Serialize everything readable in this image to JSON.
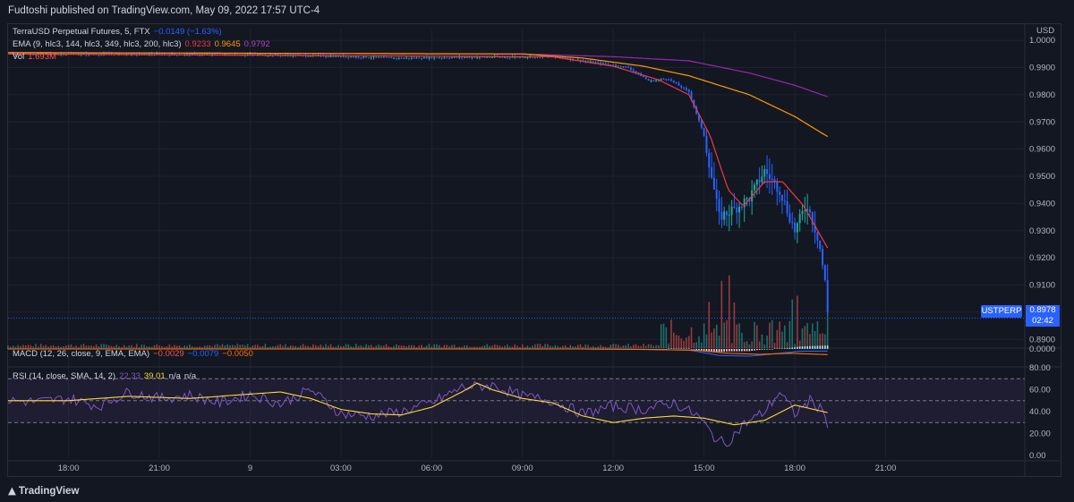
{
  "publisher": "Fudtoshi published on TradingView.com, May 09, 2022 17:57 UTC-4",
  "brand": "TradingView",
  "legend": {
    "main": {
      "title": "TerraUSD Perpetual Futures, 5, FTX",
      "change": "−0.0149 (−1.63%)"
    },
    "ema": {
      "label": "EMA (9, hlc3, 144, hlc3, 349, hlc3, 200, hlc3)",
      "v1": "0.9233",
      "v2": "0.9645",
      "v3": "0.9792"
    },
    "vol": {
      "label": "Vol",
      "value": "1.693M"
    },
    "macd": {
      "label": "MACD (12, 26, close, 9, EMA, EMA)",
      "v1": "−0.0029",
      "v2": "−0.0079",
      "v3": "−0.0050"
    },
    "rsi": {
      "label": "RSI (14, close, SMA, 14, 2)",
      "v1": "22.33",
      "v2": "39.01",
      "v3": "n/a",
      "v4": "n/a"
    }
  },
  "price_badge": {
    "symbol": "USTPERP",
    "price": "0.8978",
    "countdown": "02:42"
  },
  "colors": {
    "up": "#26a69a",
    "down": "#ef5350",
    "blue": "#2962ff",
    "ema9": "#f23645",
    "ema144": "#ff9800",
    "ema349": "#9c27b0",
    "rsi": "#7e57c2",
    "rsi_ma": "#fdd835",
    "macd": "#2962ff",
    "signal": "#ff6d00"
  },
  "chart_data": {
    "type": "line",
    "currency": "USD",
    "price_axis": {
      "ticks": [
        "1.0000",
        "0.9900",
        "0.9800",
        "0.9700",
        "0.9600",
        "0.9500",
        "0.9400",
        "0.9300",
        "0.9200",
        "0.9100",
        "0.9000",
        "0.8900"
      ],
      "range": [
        0.8868,
        1.004
      ]
    },
    "macd_axis": {
      "ticks": [
        "0.0000"
      ]
    },
    "rsi_axis": {
      "ticks": [
        "80.00",
        "60.00",
        "40.00",
        "20.00",
        "0.00"
      ],
      "range": [
        0,
        80
      ],
      "bands": [
        70,
        50,
        30
      ]
    },
    "time_axis": {
      "labels": [
        "18:00",
        "21:00",
        "9",
        "03:00",
        "06:00",
        "09:00",
        "12:00",
        "15:00",
        "18:00",
        "21:00"
      ],
      "hours": [
        18,
        21,
        24,
        27,
        30,
        33,
        36,
        39,
        42,
        45
      ]
    },
    "x_range_hours": [
      16.0,
      49.6
    ],
    "price_keypoints": [
      [
        16.0,
        0.995
      ],
      [
        20,
        0.995
      ],
      [
        24,
        0.9948
      ],
      [
        26,
        0.9944
      ],
      [
        28,
        0.9938
      ],
      [
        29,
        0.9935
      ],
      [
        31,
        0.9938
      ],
      [
        34,
        0.994
      ],
      [
        35,
        0.9925
      ],
      [
        36.5,
        0.99
      ],
      [
        37.2,
        0.985
      ],
      [
        37.8,
        0.986
      ],
      [
        38.5,
        0.981
      ],
      [
        39.0,
        0.965
      ],
      [
        39.5,
        0.935
      ],
      [
        40.0,
        0.938
      ],
      [
        40.5,
        0.942
      ],
      [
        41.0,
        0.952
      ],
      [
        41.5,
        0.945
      ],
      [
        42.0,
        0.93
      ],
      [
        42.4,
        0.94
      ],
      [
        42.8,
        0.926
      ],
      [
        43.0,
        0.911
      ],
      [
        43.1,
        0.898
      ]
    ],
    "ema9_keypoints": [
      [
        16.0,
        0.995
      ],
      [
        34,
        0.994
      ],
      [
        36,
        0.9905
      ],
      [
        37.5,
        0.9855
      ],
      [
        38.5,
        0.98
      ],
      [
        39.2,
        0.965
      ],
      [
        39.8,
        0.945
      ],
      [
        40.3,
        0.939
      ],
      [
        41.0,
        0.948
      ],
      [
        41.6,
        0.948
      ],
      [
        42.3,
        0.939
      ],
      [
        43.1,
        0.9233
      ]
    ],
    "ema144_keypoints": [
      [
        16.0,
        0.9955
      ],
      [
        33,
        0.995
      ],
      [
        35,
        0.9935
      ],
      [
        37,
        0.9905
      ],
      [
        38.5,
        0.987
      ],
      [
        40.5,
        0.98
      ],
      [
        42,
        0.972
      ],
      [
        43.1,
        0.9645
      ]
    ],
    "ema349_keypoints": [
      [
        16.0,
        0.9955
      ],
      [
        33,
        0.995
      ],
      [
        36,
        0.994
      ],
      [
        38.5,
        0.9925
      ],
      [
        40.5,
        0.988
      ],
      [
        42,
        0.9835
      ],
      [
        43.1,
        0.9792
      ]
    ],
    "rsi_keypoints": [
      [
        16.0,
        50
      ],
      [
        17,
        49
      ],
      [
        18,
        52
      ],
      [
        19,
        45
      ],
      [
        20,
        58
      ],
      [
        21,
        52
      ],
      [
        22,
        55
      ],
      [
        23,
        48
      ],
      [
        24,
        56
      ],
      [
        25,
        47
      ],
      [
        26,
        60
      ],
      [
        27,
        38
      ],
      [
        28,
        36
      ],
      [
        29,
        40
      ],
      [
        30,
        48
      ],
      [
        31,
        62
      ],
      [
        32,
        64
      ],
      [
        33,
        54
      ],
      [
        34,
        50
      ],
      [
        35,
        38
      ],
      [
        36,
        45
      ],
      [
        37,
        42
      ],
      [
        38,
        48
      ],
      [
        38.8,
        36
      ],
      [
        39.3,
        18
      ],
      [
        39.7,
        10
      ],
      [
        40.3,
        28
      ],
      [
        41,
        40
      ],
      [
        41.5,
        58
      ],
      [
        42.0,
        38
      ],
      [
        42.5,
        50
      ],
      [
        43.0,
        40
      ],
      [
        43.1,
        22.33
      ]
    ],
    "rsi_ma_keypoints": [
      [
        16.0,
        50
      ],
      [
        18,
        50
      ],
      [
        20,
        54
      ],
      [
        22,
        52
      ],
      [
        24,
        56
      ],
      [
        25,
        58
      ],
      [
        26,
        52
      ],
      [
        27,
        42
      ],
      [
        28,
        38
      ],
      [
        29,
        37
      ],
      [
        30,
        44
      ],
      [
        31,
        58
      ],
      [
        31.5,
        66
      ],
      [
        32,
        60
      ],
      [
        33,
        52
      ],
      [
        34,
        48
      ],
      [
        35,
        36
      ],
      [
        36,
        30
      ],
      [
        37,
        34
      ],
      [
        38,
        36
      ],
      [
        39,
        34
      ],
      [
        40,
        28
      ],
      [
        41,
        32
      ],
      [
        42,
        46
      ],
      [
        43.1,
        39.01
      ]
    ],
    "macd_keypoints": [
      [
        16.0,
        0.0
      ],
      [
        35,
        0.0
      ],
      [
        36.5,
        -0.0005
      ],
      [
        38.5,
        -0.0015
      ],
      [
        39.5,
        -0.009
      ],
      [
        40.5,
        -0.01
      ],
      [
        41.5,
        -0.006
      ],
      [
        42.2,
        -0.003
      ],
      [
        43.1,
        -0.0029
      ]
    ],
    "signal_keypoints": [
      [
        16.0,
        0.0
      ],
      [
        35,
        0.0
      ],
      [
        37,
        -0.0005
      ],
      [
        38.8,
        -0.002
      ],
      [
        39.8,
        -0.006
      ],
      [
        40.8,
        -0.0075
      ],
      [
        41.8,
        -0.006
      ],
      [
        43.1,
        -0.0079
      ]
    ],
    "volume_note": "volume bars small until 12:00, large spikes 14:00–18:00, last value 1.693M"
  }
}
